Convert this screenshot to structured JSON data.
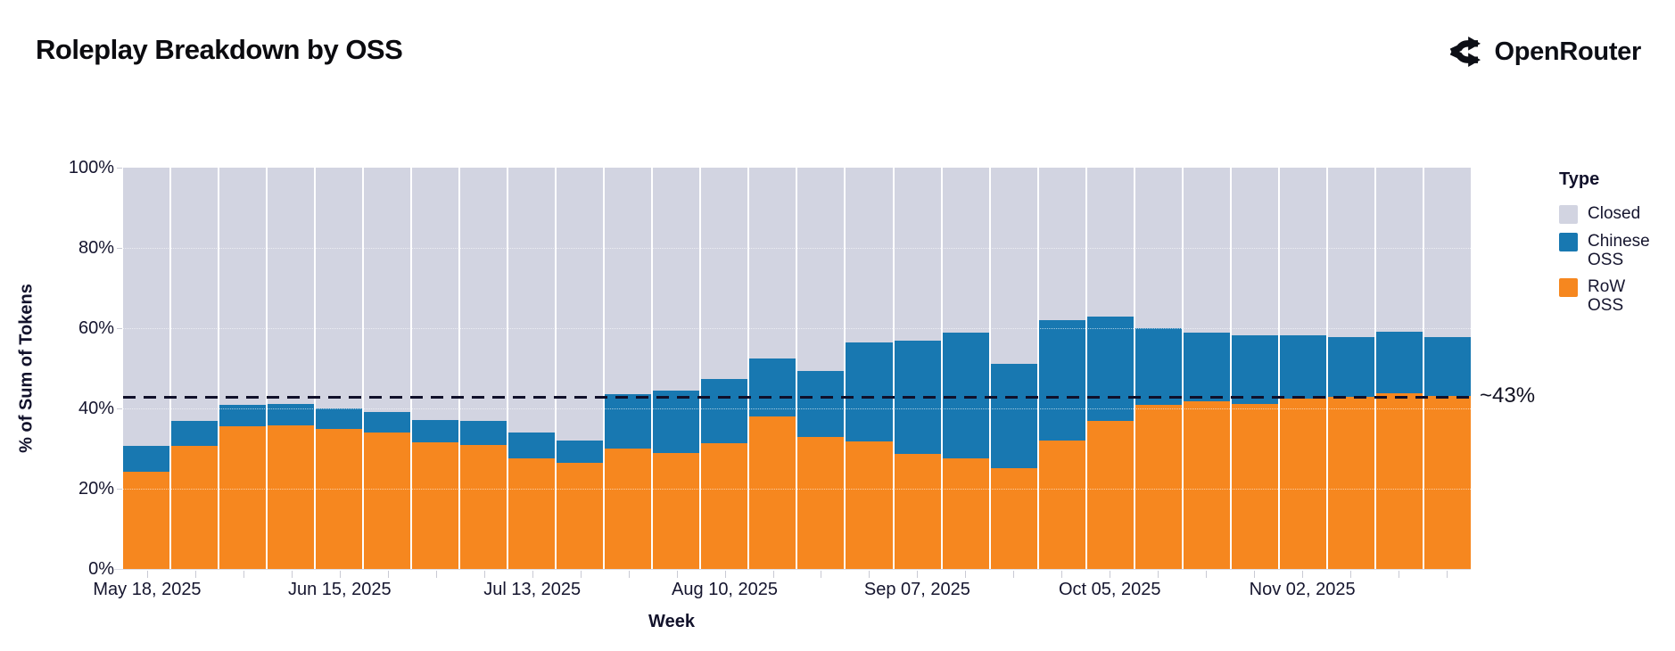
{
  "header": {
    "title": "Roleplay Breakdown by OSS",
    "brand": "OpenRouter"
  },
  "chart_data": {
    "type": "bar",
    "stacked": true,
    "title": "Roleplay Breakdown by OSS",
    "xlabel": "Week",
    "ylabel": "% of Sum of Tokens",
    "ylim": [
      0,
      100
    ],
    "y_tick_values": [
      0,
      20,
      40,
      60,
      80,
      100
    ],
    "y_tick_labels": [
      "0%",
      "20%",
      "40%",
      "60%",
      "80%",
      "100%"
    ],
    "x_label_every": 4,
    "categories": [
      "May 18, 2025",
      "May 25, 2025",
      "Jun 01, 2025",
      "Jun 08, 2025",
      "Jun 15, 2025",
      "Jun 22, 2025",
      "Jun 29, 2025",
      "Jul 06, 2025",
      "Jul 13, 2025",
      "Jul 20, 2025",
      "Jul 27, 2025",
      "Aug 03, 2025",
      "Aug 10, 2025",
      "Aug 17, 2025",
      "Aug 24, 2025",
      "Aug 31, 2025",
      "Sep 07, 2025",
      "Sep 14, 2025",
      "Sep 21, 2025",
      "Sep 28, 2025",
      "Oct 05, 2025",
      "Oct 12, 2025",
      "Oct 19, 2025",
      "Oct 26, 2025",
      "Nov 02, 2025",
      "Nov 09, 2025",
      "Nov 16, 2025",
      "Nov 23, 2025"
    ],
    "x_tick_labels_shown": [
      "May 18, 2025",
      "Jun 15, 2025",
      "Jul 13, 2025",
      "Aug 10, 2025",
      "Sep 07, 2025",
      "Oct 05, 2025",
      "Nov 02, 2025"
    ],
    "series": [
      {
        "name": "RoW OSS",
        "color": "#f6871f",
        "values": [
          24.2,
          30.7,
          35.5,
          35.7,
          35.0,
          34.0,
          31.5,
          31.0,
          27.6,
          26.5,
          30.0,
          29.0,
          31.3,
          37.9,
          32.8,
          31.8,
          28.6,
          27.6,
          25.2,
          31.9,
          37.0,
          41.0,
          41.7,
          41.2,
          42.4,
          43.0,
          43.8,
          43.1
        ]
      },
      {
        "name": "Chinese OSS",
        "color": "#1878b1",
        "values": [
          6.4,
          6.3,
          5.5,
          5.4,
          4.9,
          5.1,
          5.7,
          5.8,
          6.5,
          5.6,
          13.5,
          15.4,
          16.1,
          14.6,
          16.6,
          24.6,
          28.2,
          31.3,
          25.9,
          30.0,
          26.0,
          19.0,
          17.2,
          17.1,
          15.9,
          14.8,
          15.4,
          14.7
        ]
      },
      {
        "name": "Closed",
        "color": "#d2d4e1",
        "values": [
          69.4,
          63.0,
          59.0,
          58.9,
          60.1,
          60.9,
          62.8,
          63.2,
          65.9,
          67.9,
          56.5,
          55.6,
          52.6,
          47.5,
          50.6,
          43.6,
          43.2,
          41.1,
          48.9,
          38.1,
          37.0,
          40.0,
          41.1,
          41.7,
          41.7,
          42.2,
          40.8,
          42.2
        ]
      }
    ],
    "legend": {
      "title": "Type",
      "position": "right",
      "entries": [
        {
          "label": "Closed",
          "color": "#d2d4e1"
        },
        {
          "label": "Chinese OSS",
          "color": "#1878b1"
        },
        {
          "label": "RoW OSS",
          "color": "#f6871f"
        }
      ]
    },
    "annotation": {
      "label": "~43%",
      "value": 43,
      "line_style": "dashed",
      "line_color": "#10102a"
    },
    "grid": true
  }
}
